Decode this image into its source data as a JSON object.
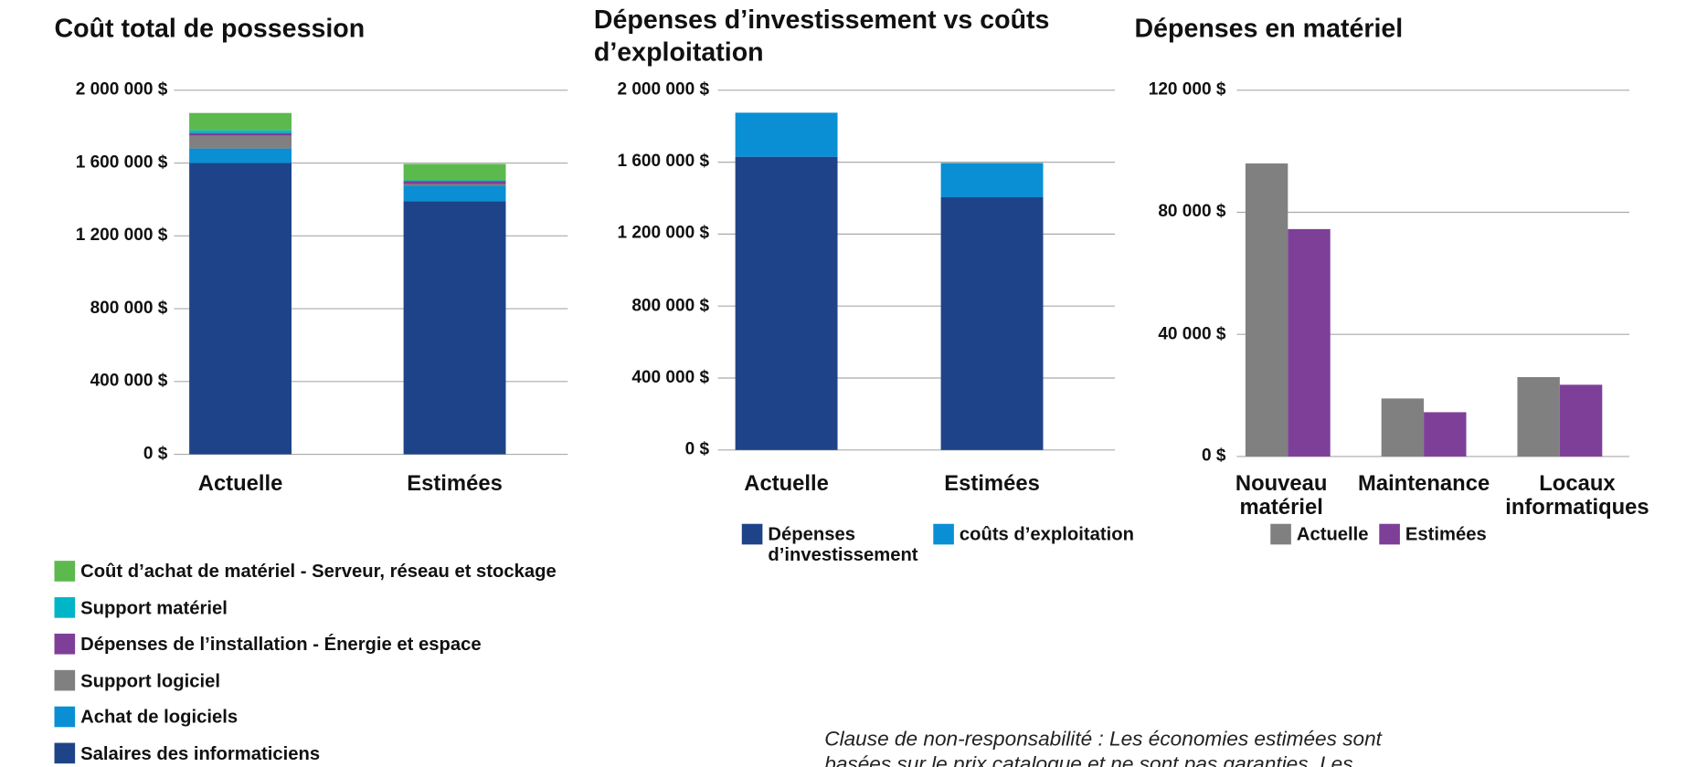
{
  "chart_data": [
    {
      "type": "bar",
      "stacked": true,
      "title": "Coût total de possession",
      "categories": [
        "Actuelle",
        "Estimées"
      ],
      "series": [
        {
          "name": "Salaires des informaticiens",
          "color": "#1e4388",
          "values": [
            1600000,
            1390000
          ]
        },
        {
          "name": "Achat de logiciels",
          "color": "#0a8fd4",
          "values": [
            80000,
            85000
          ]
        },
        {
          "name": "Support logiciel",
          "color": "#808080",
          "values": [
            70000,
            10000
          ]
        },
        {
          "name": "Dépenses de l’installation - Énergie et espace",
          "color": "#7e3f98",
          "values": [
            15000,
            15000
          ]
        },
        {
          "name": "Support matériel",
          "color": "#00b5c8",
          "values": [
            15000,
            5000
          ]
        },
        {
          "name": "Coût d’achat de matériel - Serveur, réseau et stockage",
          "color": "#5cb94d",
          "values": [
            95000,
            90000
          ]
        }
      ],
      "ylim": [
        0,
        2000000
      ],
      "yticks": [
        {
          "value": 0,
          "label": "0 $"
        },
        {
          "value": 400000,
          "label": "400 000 $"
        },
        {
          "value": 800000,
          "label": "800 000 $"
        },
        {
          "value": 1200000,
          "label": "1 200 000 $"
        },
        {
          "value": 1600000,
          "label": "1 600 000 $"
        },
        {
          "value": 2000000,
          "label": "2 000 000 $"
        }
      ],
      "grid": true
    },
    {
      "type": "bar",
      "stacked": true,
      "title": "Dépenses d’investissement vs coûts d’exploitation",
      "categories": [
        "Actuelle",
        "Estimées"
      ],
      "series": [
        {
          "name": "Dépenses d’investissement",
          "color": "#1e4388",
          "values": [
            1630000,
            1405000
          ]
        },
        {
          "name": "coûts d’exploitation",
          "color": "#0a8fd4",
          "values": [
            245000,
            190000
          ]
        }
      ],
      "ylim": [
        0,
        2000000
      ],
      "yticks": [
        {
          "value": 0,
          "label": "0 $"
        },
        {
          "value": 400000,
          "label": "400 000 $"
        },
        {
          "value": 800000,
          "label": "800 000 $"
        },
        {
          "value": 1200000,
          "label": "1 200 000 $"
        },
        {
          "value": 1600000,
          "label": "1 600 000 $"
        },
        {
          "value": 2000000,
          "label": "2 000 000 $"
        }
      ],
      "grid": true
    },
    {
      "type": "bar",
      "stacked": false,
      "title": "Dépenses en matériel",
      "categories": [
        "Nouveau matériel",
        "Maintenance",
        "Locaux informatiques"
      ],
      "series": [
        {
          "name": "Actuelle",
          "color": "#808080",
          "values": [
            96000,
            19000,
            26000
          ]
        },
        {
          "name": "Estimées",
          "color": "#7e3f98",
          "values": [
            74500,
            14500,
            23500
          ]
        }
      ],
      "ylim": [
        0,
        120000
      ],
      "yticks": [
        {
          "value": 0,
          "label": "0 $"
        },
        {
          "value": 40000,
          "label": "40 000 $"
        },
        {
          "value": 80000,
          "label": "80 000 $"
        },
        {
          "value": 120000,
          "label": "120 000 $"
        }
      ],
      "grid": true
    }
  ],
  "disclaimer": "Clause de non-responsabilité : Les économies estimées sont basées sur le prix catalogue et ne sont pas garanties. Les résultats réels peuvent varier."
}
